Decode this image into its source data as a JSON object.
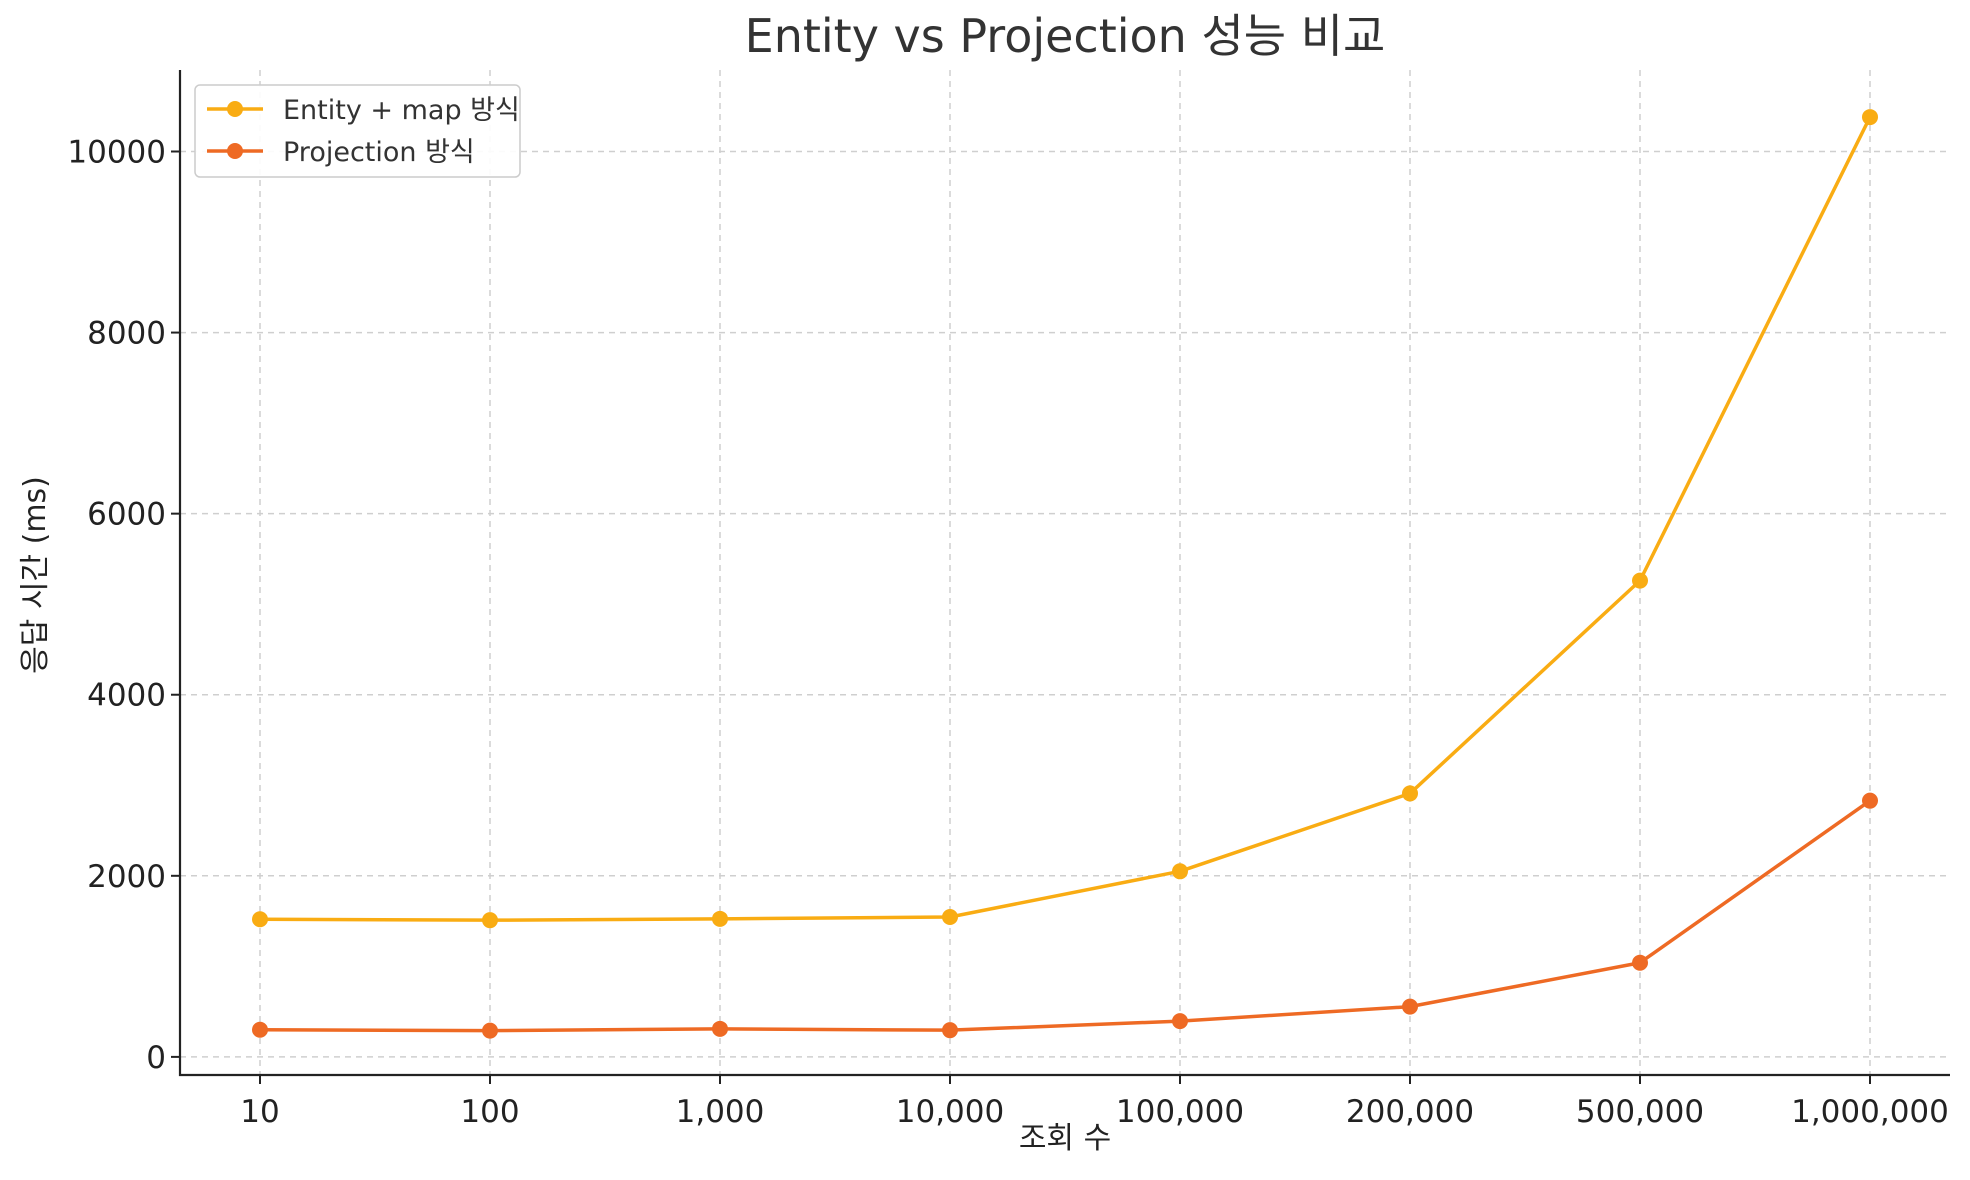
{
  "chart_data": {
    "type": "line",
    "title": "Entity vs Projection 성능 비교",
    "xlabel": "조회 수",
    "ylabel": "응답 시간 (ms)",
    "categories": [
      "10",
      "100",
      "1,000",
      "10,000",
      "100,000",
      "200,000",
      "500,000",
      "1,000,000"
    ],
    "ylim": [
      -200,
      10900
    ],
    "yticks": [
      0,
      2000,
      4000,
      6000,
      8000,
      10000
    ],
    "grid": true,
    "legend_position": "top-left",
    "series": [
      {
        "name": "Entity + map 방식",
        "color": "#F9AC13",
        "values": [
          1520,
          1510,
          1525,
          1545,
          2050,
          2910,
          5260,
          10380
        ]
      },
      {
        "name": "Projection 방식",
        "color": "#EE6A24",
        "values": [
          300,
          290,
          310,
          295,
          395,
          555,
          1040,
          2830
        ]
      }
    ]
  }
}
